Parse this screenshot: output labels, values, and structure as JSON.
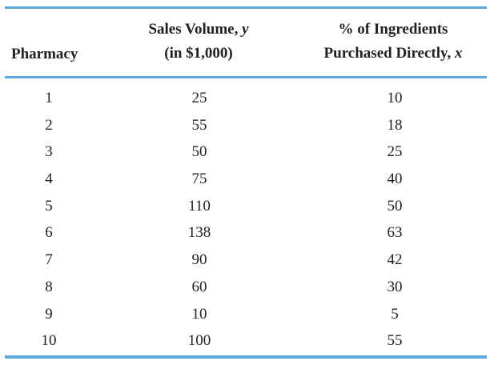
{
  "table": {
    "headers": {
      "pharmacy": "Pharmacy",
      "sales_line1": "Sales Volume, ",
      "sales_var": "y",
      "sales_line2": "(in $1,000)",
      "ingr_line1": "% of Ingredients",
      "ingr_line2": "Purchased Directly, ",
      "ingr_var": "x"
    },
    "rows": [
      {
        "pharmacy": "1",
        "sales": "25",
        "pct": "10"
      },
      {
        "pharmacy": "2",
        "sales": "55",
        "pct": "18"
      },
      {
        "pharmacy": "3",
        "sales": "50",
        "pct": "25"
      },
      {
        "pharmacy": "4",
        "sales": "75",
        "pct": "40"
      },
      {
        "pharmacy": "5",
        "sales": "110",
        "pct": "50"
      },
      {
        "pharmacy": "6",
        "sales": "138",
        "pct": "63"
      },
      {
        "pharmacy": "7",
        "sales": "90",
        "pct": "42"
      },
      {
        "pharmacy": "8",
        "sales": "60",
        "pct": "30"
      },
      {
        "pharmacy": "9",
        "sales": "10",
        "pct": "5"
      },
      {
        "pharmacy": "10",
        "sales": "100",
        "pct": "55"
      }
    ],
    "rule_color": "#5aa8dc",
    "text_color": "#231f20"
  }
}
